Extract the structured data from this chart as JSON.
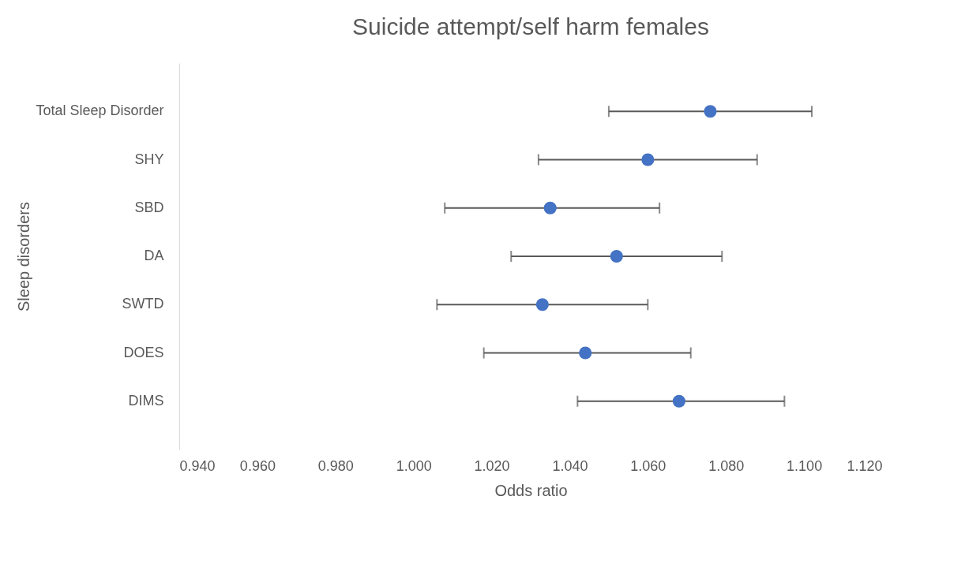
{
  "chart_data": {
    "type": "scatter",
    "orientation": "horizontal",
    "title": "Suicide attempt/self harm females",
    "xlabel": "Odds ratio",
    "ylabel": "Sleep disorders",
    "categories": [
      "Total Sleep Disorder",
      "SHY",
      "SBD",
      "DA",
      "SWTD",
      "DOES",
      "DIMS"
    ],
    "values": [
      1.076,
      1.06,
      1.035,
      1.052,
      1.033,
      1.044,
      1.068
    ],
    "errors": [
      [
        1.05,
        1.102
      ],
      [
        1.032,
        1.088
      ],
      [
        1.008,
        1.063
      ],
      [
        1.025,
        1.079
      ],
      [
        1.006,
        1.06
      ],
      [
        1.018,
        1.071
      ],
      [
        1.042,
        1.095
      ]
    ],
    "color": "#4472c4",
    "marker": "circle",
    "grid": false,
    "legend": false,
    "xlim": [
      0.94,
      1.12
    ],
    "xticks": [
      {
        "value": 0.94,
        "label": "0.940"
      },
      {
        "value": 0.96,
        "label": "0.960"
      },
      {
        "value": 0.98,
        "label": "0.980"
      },
      {
        "value": 1.0,
        "label": "1.000"
      },
      {
        "value": 1.02,
        "label": "1.020"
      },
      {
        "value": 1.04,
        "label": "1.040"
      },
      {
        "value": 1.06,
        "label": "1.060"
      },
      {
        "value": 1.08,
        "label": "1.080"
      },
      {
        "value": 1.1,
        "label": "1.100"
      },
      {
        "value": 1.12,
        "label": "1.120"
      }
    ]
  }
}
